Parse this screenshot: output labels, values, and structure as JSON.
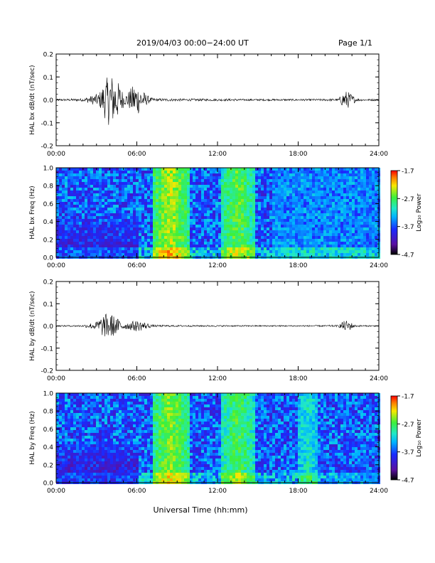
{
  "header": {
    "title": "2019/04/03  00:00−24:00 UT",
    "page": "Page 1/1"
  },
  "xaxis": {
    "label": "Universal Time (hh:mm)",
    "ticks": [
      "00:00",
      "06:00",
      "12:00",
      "18:00",
      "24:00"
    ],
    "range_hours": [
      0,
      24
    ]
  },
  "colorbar": {
    "label": "Log₁₀ Power",
    "ticks": [
      "-1.7",
      "-2.7",
      "-3.7",
      "-4.7"
    ],
    "range": [
      -4.7,
      -1.7
    ]
  },
  "chart_data": [
    {
      "type": "line",
      "ylabel": "HAL bx dB/dt (nT/sec)",
      "ylim": [
        -0.2,
        0.2
      ],
      "yticks": [
        "0.2",
        "0.1",
        "0.0",
        "-0.1",
        "-0.2"
      ],
      "envelope": {
        "x_hours": [
          0,
          2,
          3.2,
          3.6,
          4.0,
          4.4,
          4.8,
          5.1,
          5.4,
          5.8,
          6.2,
          6.6,
          7.0,
          7.5,
          8,
          10,
          12,
          13.4,
          14,
          16,
          18,
          21.0,
          21.3,
          21.6,
          21.9,
          22.3,
          23,
          24
        ],
        "amplitude": [
          0.004,
          0.006,
          0.03,
          0.08,
          0.12,
          0.1,
          0.06,
          0.02,
          0.04,
          0.07,
          0.06,
          0.03,
          0.01,
          0.006,
          0.006,
          0.005,
          0.005,
          0.005,
          0.004,
          0.004,
          0.004,
          0.005,
          0.03,
          0.04,
          0.03,
          0.006,
          0.004,
          0.004
        ]
      }
    },
    {
      "type": "heatmap",
      "ylabel": "HAL bx Freq (Hz)",
      "ylim": [
        0,
        1.0
      ],
      "yticks": [
        "1.0",
        "0.8",
        "0.6",
        "0.4",
        "0.2",
        "0.0"
      ],
      "zrange": [
        -4.7,
        -1.7
      ],
      "bands": [
        {
          "x_hours": [
            7.0,
            9.8
          ],
          "level": -2.4
        },
        {
          "x_hours": [
            12.2,
            14.6
          ],
          "level": -2.6
        },
        {
          "x_hours": [
            0,
            6.0
          ],
          "level": -4.1
        },
        {
          "x_hours": [
            16.0,
            24
          ],
          "level": -3.6
        }
      ]
    },
    {
      "type": "line",
      "ylabel": "HAL by dB/dt (nT/sec)",
      "ylim": [
        -0.2,
        0.2
      ],
      "yticks": [
        "0.2",
        "0.1",
        "0.0",
        "-0.1",
        "-0.2"
      ],
      "envelope": {
        "x_hours": [
          0,
          2,
          3.0,
          3.5,
          4.0,
          4.4,
          4.8,
          5.2,
          5.6,
          6.0,
          6.4,
          6.8,
          7.2,
          8,
          12,
          16,
          18,
          21.0,
          21.3,
          21.6,
          21.9,
          22.2,
          23,
          24
        ],
        "amplitude": [
          0.003,
          0.004,
          0.02,
          0.05,
          0.06,
          0.04,
          0.025,
          0.015,
          0.02,
          0.025,
          0.02,
          0.012,
          0.005,
          0.004,
          0.003,
          0.003,
          0.003,
          0.004,
          0.02,
          0.025,
          0.018,
          0.005,
          0.003,
          0.003
        ]
      }
    },
    {
      "type": "heatmap",
      "ylabel": "HAL by Freq (Hz)",
      "ylim": [
        0,
        1.0
      ],
      "yticks": [
        "1.0",
        "0.8",
        "0.6",
        "0.4",
        "0.2",
        "0.0"
      ],
      "zrange": [
        -4.7,
        -1.7
      ],
      "bands": [
        {
          "x_hours": [
            7.0,
            9.8
          ],
          "level": -2.5
        },
        {
          "x_hours": [
            12.2,
            14.6
          ],
          "level": -2.7
        },
        {
          "x_hours": [
            17.8,
            19.4
          ],
          "level": -3.1
        },
        {
          "x_hours": [
            0,
            6.0
          ],
          "level": -4.2
        },
        {
          "x_hours": [
            19.4,
            24
          ],
          "level": -3.7
        }
      ]
    }
  ]
}
